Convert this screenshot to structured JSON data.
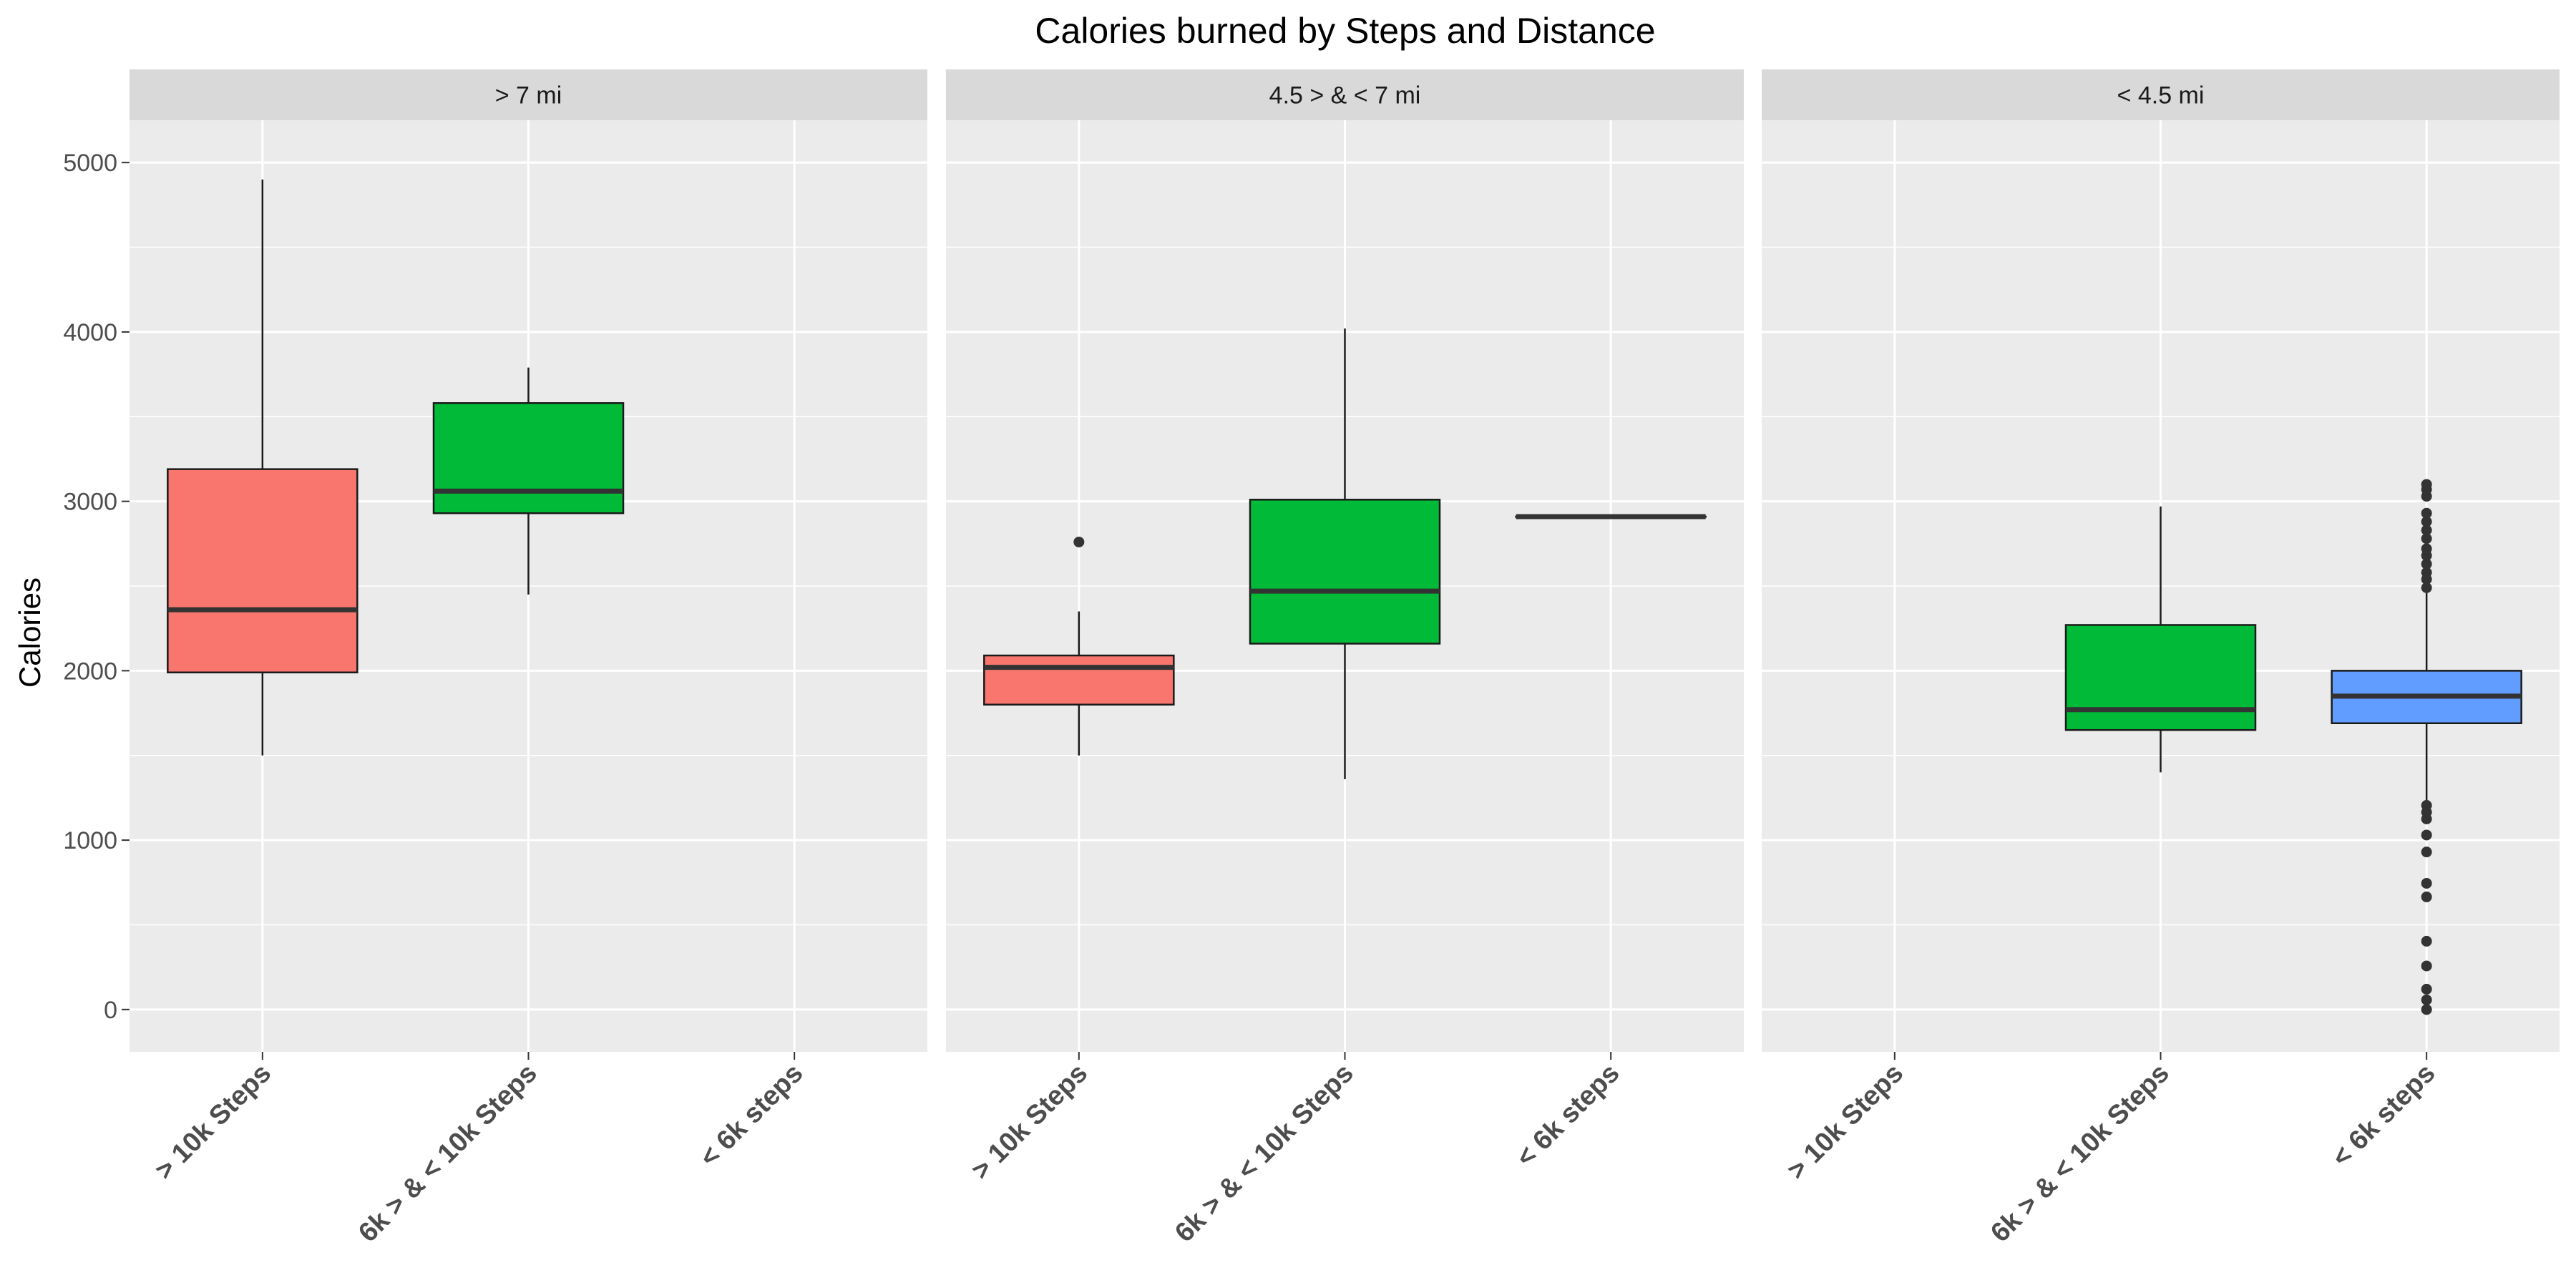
{
  "chart_data": {
    "type": "boxplot",
    "title": "Calories burned by Steps and Distance",
    "xlabel": "",
    "ylabel": "Calories",
    "ylim": [
      -250,
      5250
    ],
    "yticks": [
      0,
      1000,
      2000,
      3000,
      4000,
      5000
    ],
    "categories": [
      "> 10k Steps",
      "6k > & < 10k Steps",
      "< 6k steps"
    ],
    "colors": {
      "> 10k Steps": "#F8766D",
      "6k > & < 10k Steps": "#00BA38",
      "< 6k steps": "#619CFF"
    },
    "grid": true,
    "legend": "none",
    "panels": [
      {
        "label": "> 7 mi",
        "boxes": [
          {
            "category": "> 10k Steps",
            "whisker_low": 1500,
            "q1": 1990,
            "median": 2360,
            "q3": 3190,
            "whisker_high": 4900,
            "outliers": []
          },
          {
            "category": "6k > & < 10k Steps",
            "whisker_low": 2450,
            "q1": 2930,
            "median": 3060,
            "q3": 3580,
            "whisker_high": 3790,
            "outliers": []
          }
        ]
      },
      {
        "label": "4.5 > & < 7 mi",
        "boxes": [
          {
            "category": "> 10k Steps",
            "whisker_low": 1500,
            "q1": 1800,
            "median": 2020,
            "q3": 2090,
            "whisker_high": 2350,
            "outliers": [
              2760
            ]
          },
          {
            "category": "6k > & < 10k Steps",
            "whisker_low": 1360,
            "q1": 2160,
            "median": 2470,
            "q3": 3010,
            "whisker_high": 4020,
            "outliers": []
          },
          {
            "category": "< 6k steps",
            "whisker_low": 2910,
            "q1": 2910,
            "median": 2910,
            "q3": 2910,
            "whisker_high": 2910,
            "outliers": []
          }
        ]
      },
      {
        "label": "< 4.5 mi",
        "boxes": [
          {
            "category": "6k > & < 10k Steps",
            "whisker_low": 1400,
            "q1": 1650,
            "median": 1770,
            "q3": 2270,
            "whisker_high": 2970,
            "outliers": []
          },
          {
            "category": "< 6k steps",
            "whisker_low": 1230,
            "q1": 1690,
            "median": 1850,
            "q3": 2000,
            "whisker_high": 2460,
            "outliers": [
              0,
              57,
              120,
              257,
              403,
              665,
              745,
              930,
              1030,
              1125,
              1165,
              1205,
              2490,
              2540,
              2580,
              2630,
              2680,
              2720,
              2780,
              2830,
              2880,
              2930,
              3030,
              3070,
              3100
            ]
          }
        ]
      }
    ]
  }
}
